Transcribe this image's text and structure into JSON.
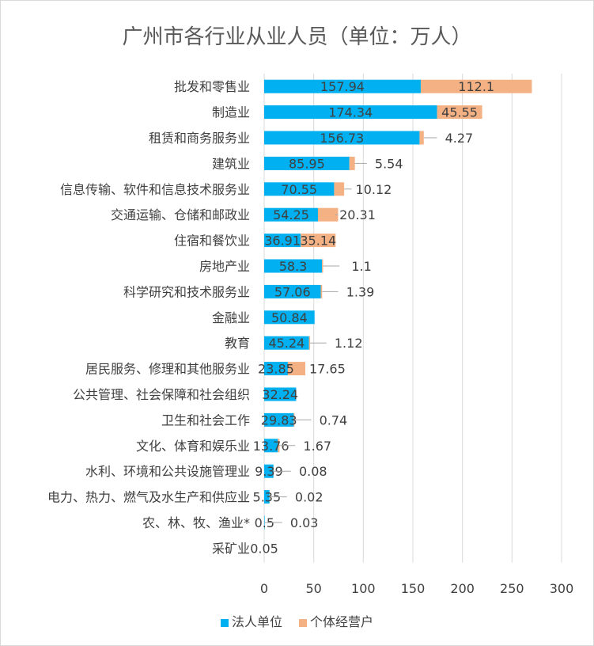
{
  "chart_data": {
    "type": "bar",
    "orientation": "horizontal",
    "stacked": true,
    "title": "广州市各行业从业人员（单位：万人）",
    "categories": [
      "批发和零售业",
      "制造业",
      "租赁和商务服务业",
      "建筑业",
      "信息传输、软件和信息技术服务业",
      "交通运输、仓储和邮政业",
      "住宿和餐饮业",
      "房地产业",
      "科学研究和技术服务业",
      "金融业",
      "教育",
      "居民服务、修理和其他服务业",
      "公共管理、社会保障和社会组织",
      "卫生和社会工作",
      "文化、体育和娱乐业",
      "水利、环境和公共设施管理业",
      "电力、热力、燃气及水生产和供应业",
      "农、林、牧、渔业*",
      "采矿业"
    ],
    "series": [
      {
        "name": "法人单位",
        "color": "#00B0F0",
        "values": [
          157.94,
          174.34,
          156.73,
          85.95,
          70.55,
          54.25,
          36.91,
          58.3,
          57.06,
          50.84,
          45.24,
          23.85,
          32.24,
          29.83,
          13.76,
          9.39,
          5.35,
          0.5,
          0.05
        ],
        "labels": [
          "157.94",
          "174.34",
          "156.73",
          "85.95",
          "70.55",
          "54.25",
          "36.91",
          "58.3",
          "57.06",
          "50.84",
          "45.24",
          "23.85",
          "32.24",
          "29.83",
          "13.76",
          "9.39",
          "5.35",
          "0.5",
          "0.05"
        ]
      },
      {
        "name": "个体经营户",
        "color": "#F4B183",
        "values": [
          112.1,
          45.55,
          4.27,
          5.54,
          10.12,
          20.31,
          35.14,
          1.1,
          1.39,
          null,
          1.12,
          17.65,
          null,
          0.74,
          1.67,
          0.08,
          0.02,
          0.03,
          null
        ],
        "labels": [
          "112.1",
          "45.55",
          "4.27",
          "5.54",
          "10.12",
          "20.31",
          "35.14",
          "1.1",
          "1.39",
          "",
          "1.12",
          "17.65",
          "",
          "0.74",
          "1.67",
          "0.08",
          "0.02",
          "0.03",
          ""
        ]
      }
    ],
    "xlim": [
      0,
      300
    ],
    "xticks": [
      "0",
      "50",
      "100",
      "150",
      "200",
      "250",
      "300"
    ],
    "grid": "vertical",
    "legend_position": "bottom"
  }
}
